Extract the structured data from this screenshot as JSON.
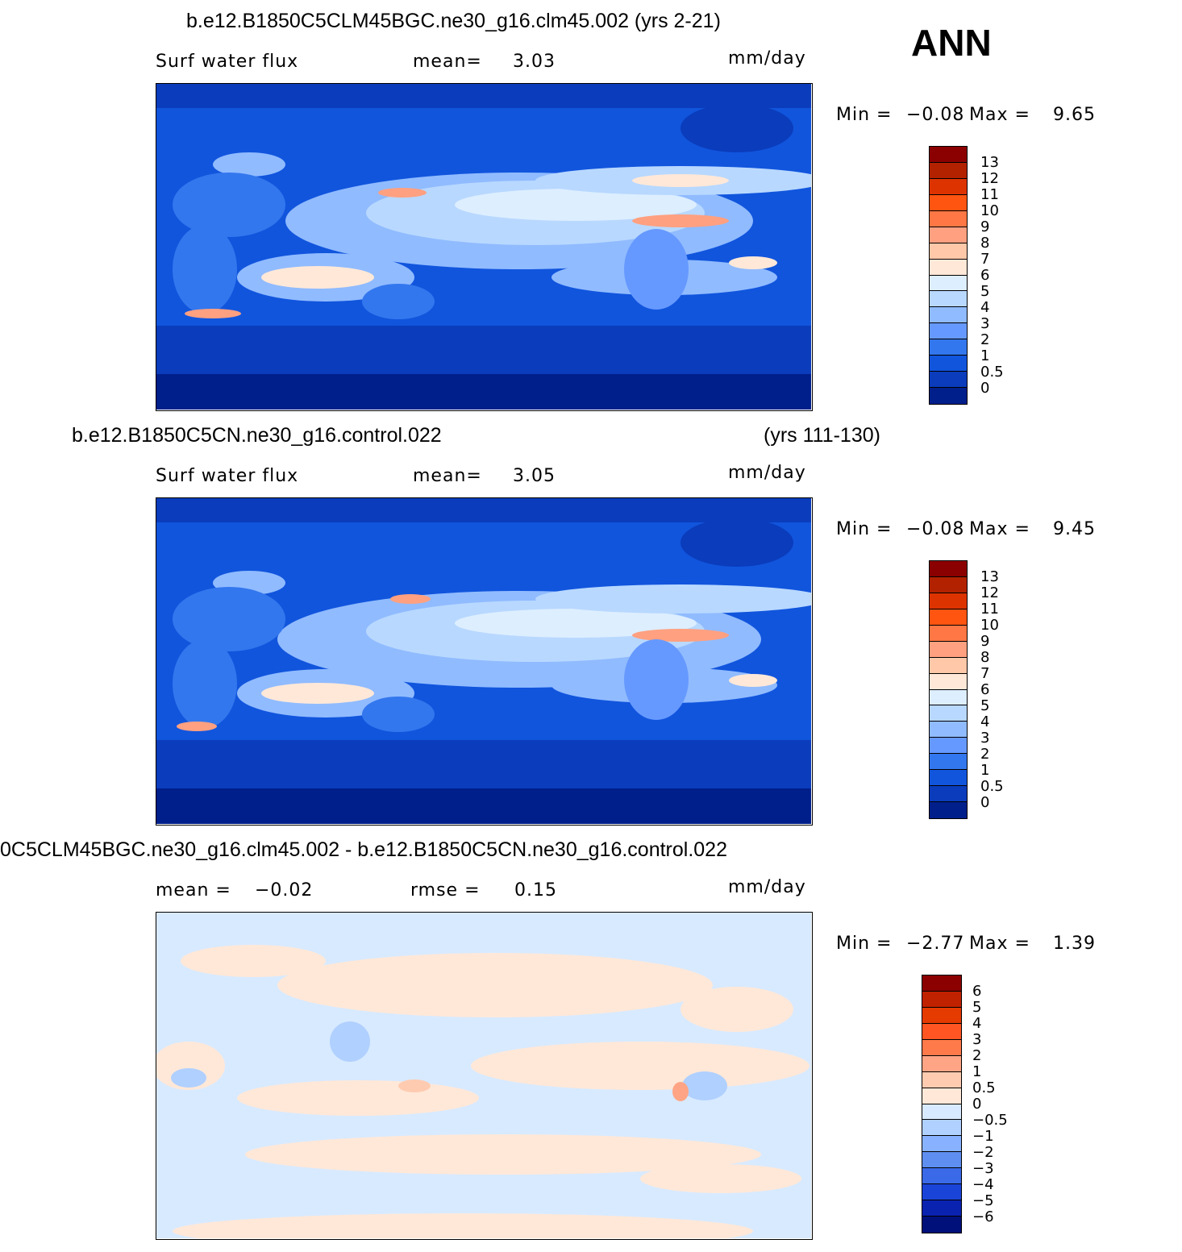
{
  "season": "ANN",
  "panels": [
    {
      "title_left": "b.e12.B1850C5CLM45BGC.ne30_g16.clm45.002 (yrs 2-21)",
      "title_right": "",
      "variable": "Surf water flux",
      "stat1_label": "mean=",
      "stat1_value": "3.03",
      "stat2_label": "",
      "stat2_value": "",
      "units": "mm/day",
      "min_label": "Min =",
      "min_value": "-0.08",
      "max_label": "Max =",
      "max_value": "9.65",
      "levels": [
        "13",
        "12",
        "11",
        "10",
        "9",
        "8",
        "7",
        "6",
        "5",
        "4",
        "3",
        "2",
        "1",
        "0.5",
        "0"
      ],
      "colors": [
        "#8b0000",
        "#b22200",
        "#dd3300",
        "#ff5511",
        "#ff7744",
        "#ffa080",
        "#ffc8a8",
        "#ffe8d8",
        "#ddeeff",
        "#b8d8ff",
        "#90bbff",
        "#6699ff",
        "#3377ee",
        "#1155dd",
        "#0a3cbb",
        "#001f8a"
      ]
    },
    {
      "title_left": "b.e12.B1850C5CN.ne30_g16.control.022",
      "title_right": "(yrs 111-130)",
      "variable": "Surf water flux",
      "stat1_label": "mean=",
      "stat1_value": "3.05",
      "stat2_label": "",
      "stat2_value": "",
      "units": "mm/day",
      "min_label": "Min =",
      "min_value": "-0.08",
      "max_label": "Max =",
      "max_value": "9.45",
      "levels": [
        "13",
        "12",
        "11",
        "10",
        "9",
        "8",
        "7",
        "6",
        "5",
        "4",
        "3",
        "2",
        "1",
        "0.5",
        "0"
      ],
      "colors": [
        "#8b0000",
        "#b22200",
        "#dd3300",
        "#ff5511",
        "#ff7744",
        "#ffa080",
        "#ffc8a8",
        "#ffe8d8",
        "#ddeeff",
        "#b8d8ff",
        "#90bbff",
        "#6699ff",
        "#3377ee",
        "#1155dd",
        "#0a3cbb",
        "#001f8a"
      ]
    },
    {
      "title_left": "0C5CLM45BGC.ne30_g16.clm45.002 - b.e12.B1850C5CN.ne30_g16.control.022",
      "title_right": "",
      "variable": "",
      "stat1_label": "mean =",
      "stat1_value": "-0.02",
      "stat2_label": "rmse =",
      "stat2_value": "0.15",
      "units": "mm/day",
      "min_label": "Min =",
      "min_value": "-2.77",
      "max_label": "Max =",
      "max_value": "1.39",
      "levels": [
        "6",
        "5",
        "4",
        "3",
        "2",
        "1",
        "0.5",
        "0",
        "-0.5",
        "-1",
        "-2",
        "-3",
        "-4",
        "-5",
        "-6"
      ],
      "colors": [
        "#8b0000",
        "#c02200",
        "#e53a00",
        "#ff5522",
        "#ff7a4a",
        "#ffa585",
        "#ffcbb0",
        "#ffe8d8",
        "#d8eaff",
        "#b0d0ff",
        "#88b2ff",
        "#5e8ef0",
        "#3a6ae8",
        "#1a44d8",
        "#0a22b0",
        "#00107a"
      ]
    }
  ]
}
